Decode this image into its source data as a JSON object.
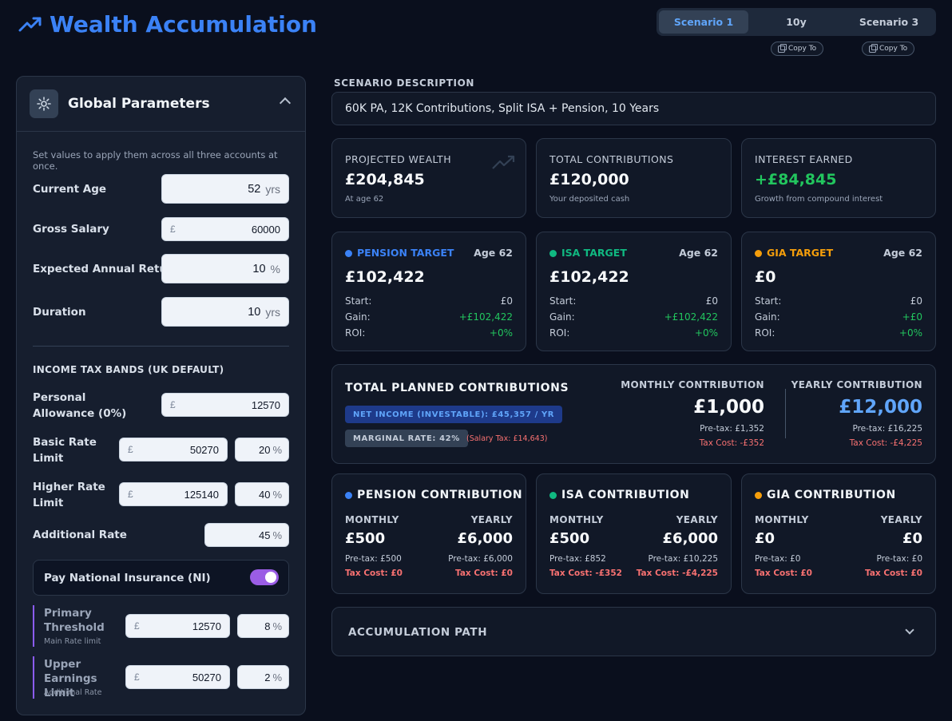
{
  "header": {
    "title": "Wealth Accumulation",
    "tabs": [
      {
        "label": "Scenario 1",
        "active": true
      },
      {
        "label": "10y",
        "active": false
      },
      {
        "label": "Scenario 3",
        "active": false
      }
    ],
    "copy_label": "Copy To"
  },
  "sidebar": {
    "title": "Global Parameters",
    "hint": "Set values to apply them across all three accounts at once.",
    "current_age": {
      "label": "Current Age",
      "value": "52",
      "unit": "yrs"
    },
    "gross_salary": {
      "label": "Gross Salary",
      "prefix": "£",
      "value": "60000"
    },
    "expected_return": {
      "label": "Expected Annual Return",
      "value": "10",
      "unit": "%"
    },
    "duration": {
      "label": "Duration",
      "value": "10",
      "unit": "yrs"
    },
    "tax_section": "INCOME TAX BANDS (UK DEFAULT)",
    "personal_allowance": {
      "label": "Personal Allowance (0%)",
      "prefix": "£",
      "value": "12570"
    },
    "basic_rate": {
      "label": "Basic Rate Limit",
      "prefix": "£",
      "value": "50270",
      "rate": "20",
      "unit": "%"
    },
    "higher_rate": {
      "label": "Higher Rate Limit",
      "prefix": "£",
      "value": "125140",
      "rate": "40",
      "unit": "%"
    },
    "additional_rate": {
      "label": "Additional Rate",
      "rate": "45",
      "unit": "%"
    },
    "ni": {
      "label": "Pay National Insurance (NI)",
      "enabled": true
    },
    "primary_threshold": {
      "label": "Primary Threshold",
      "sub": "Main Rate limit",
      "prefix": "£",
      "value": "12570",
      "rate": "8",
      "unit": "%"
    },
    "upper_earnings": {
      "label": "Upper Earnings Limit",
      "sub": "Additional Rate",
      "prefix": "£",
      "value": "50270",
      "rate": "2",
      "unit": "%"
    }
  },
  "main": {
    "desc_label": "SCENARIO DESCRIPTION",
    "description": "60K PA, 12K Contributions, Split ISA + Pension, 10 Years",
    "summary": [
      {
        "label": "PROJECTED WEALTH",
        "value": "£204,845",
        "sub": "At age 62"
      },
      {
        "label": "TOTAL CONTRIBUTIONS",
        "value": "£120,000",
        "sub": "Your deposited cash"
      },
      {
        "label": "INTEREST EARNED",
        "value": "+£84,845",
        "sub": "Growth from compound interest"
      }
    ],
    "targets": [
      {
        "title": "PENSION TARGET",
        "color": "#3b82f6",
        "age": "Age 62",
        "value": "£102,422",
        "start_label": "Start:",
        "start": "£0",
        "gain_label": "Gain:",
        "gain": "+£102,422",
        "roi_label": "ROI:",
        "roi": "+0%"
      },
      {
        "title": "ISA TARGET",
        "color": "#10b981",
        "age": "Age 62",
        "value": "£102,422",
        "start_label": "Start:",
        "start": "£0",
        "gain_label": "Gain:",
        "gain": "+£102,422",
        "roi_label": "ROI:",
        "roi": "+0%"
      },
      {
        "title": "GIA TARGET",
        "color": "#f59e0b",
        "age": "Age 62",
        "value": "£0",
        "start_label": "Start:",
        "start": "£0",
        "gain_label": "Gain:",
        "gain": "+£0",
        "roi_label": "ROI:",
        "roi": "+0%"
      }
    ],
    "planned": {
      "title": "TOTAL PLANNED CONTRIBUTIONS",
      "net_income": "NET INCOME (INVESTABLE): £45,357 / YR",
      "marginal": "MARGINAL RATE: 42%",
      "salary_tax": "(Salary Tax: £14,643)",
      "monthly_label": "MONTHLY CONTRIBUTION",
      "monthly_value": "£1,000",
      "monthly_pretax": "Pre-tax: £1,352",
      "monthly_taxcost": "Tax Cost: -£352",
      "yearly_label": "YEARLY CONTRIBUTION",
      "yearly_value": "£12,000",
      "yearly_pretax": "Pre-tax: £16,225",
      "yearly_taxcost": "Tax Cost: -£4,225"
    },
    "contributions": [
      {
        "title": "PENSION CONTRIBUTION",
        "color": "#3b82f6",
        "monthly_label": "MONTHLY",
        "yearly_label": "YEARLY",
        "monthly": "£500",
        "yearly": "£6,000",
        "m_pretax": "Pre-tax: £500",
        "y_pretax": "Pre-tax: £6,000",
        "m_tax": "Tax Cost: £0",
        "y_tax": "Tax Cost: £0"
      },
      {
        "title": "ISA CONTRIBUTION",
        "color": "#10b981",
        "monthly_label": "MONTHLY",
        "yearly_label": "YEARLY",
        "monthly": "£500",
        "yearly": "£6,000",
        "m_pretax": "Pre-tax: £852",
        "y_pretax": "Pre-tax: £10,225",
        "m_tax": "Tax Cost: -£352",
        "y_tax": "Tax Cost: -£4,225"
      },
      {
        "title": "GIA CONTRIBUTION",
        "color": "#f59e0b",
        "monthly_label": "MONTHLY",
        "yearly_label": "YEARLY",
        "monthly": "£0",
        "yearly": "£0",
        "m_pretax": "Pre-tax: £0",
        "y_pretax": "Pre-tax: £0",
        "m_tax": "Tax Cost: £0",
        "y_tax": "Tax Cost: £0"
      }
    ],
    "accumulation_path": "ACCUMULATION PATH"
  },
  "colors": {
    "accent": "#3b82f6",
    "green": "#22c55e",
    "red": "#f87171",
    "purple": "#9b5de5",
    "pension": "#3b82f6",
    "isa": "#10b981",
    "gia": "#f59e0b"
  },
  "icons": [
    "trending-up-icon",
    "copy-icon",
    "settings-icon",
    "chevron-up-icon",
    "chevron-down-icon"
  ]
}
